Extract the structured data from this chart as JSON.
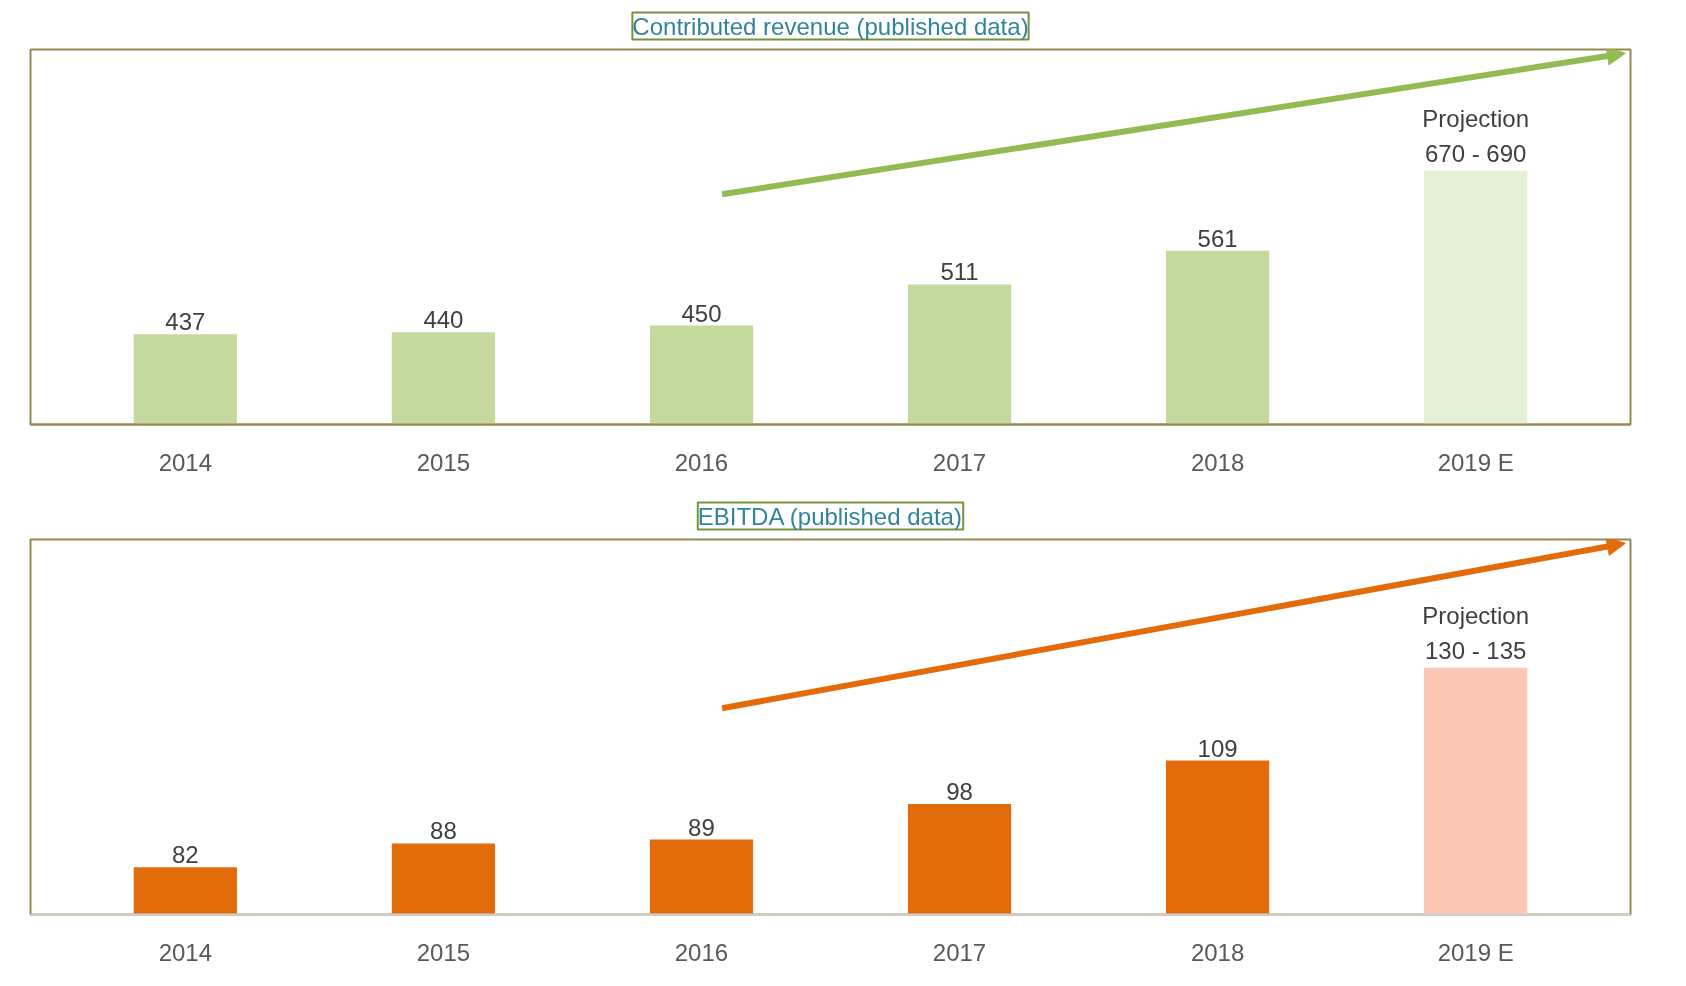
{
  "chart_data": [
    {
      "type": "bar",
      "title": "Contributed revenue (published data)",
      "categories": [
        "2014",
        "2015",
        "2016",
        "2017",
        "2018",
        "2019 E"
      ],
      "values": [
        437,
        440,
        450,
        511,
        561,
        680
      ],
      "colors": [
        "#c5d89d",
        "#c5d89d",
        "#c5d89d",
        "#c5d89d",
        "#c5d89d",
        "#e6f0d4"
      ],
      "value_labels": [
        "437",
        "440",
        "450",
        "511",
        "561",
        "Projection\n670 - 690"
      ],
      "ylim": [
        303,
        860
      ],
      "tick_labels": "x",
      "grid": false
    },
    {
      "type": "bar",
      "title": "EBITDA (published data)",
      "categories": [
        "2014",
        "2015",
        "2016",
        "2017",
        "2018",
        "2019 E"
      ],
      "values": [
        82,
        88,
        89,
        98,
        109,
        132.5
      ],
      "colors": [
        "#e36c0a",
        "#e36c0a",
        "#e36c0a",
        "#e36c0a",
        "#e36c0a",
        "#fcc7b6"
      ],
      "value_labels": [
        "82",
        "88",
        "89",
        "98",
        "109",
        "Projection\n130 - 135"
      ],
      "ylim": [
        70,
        165
      ],
      "tick_labels": "x",
      "grid": false
    }
  ]
}
